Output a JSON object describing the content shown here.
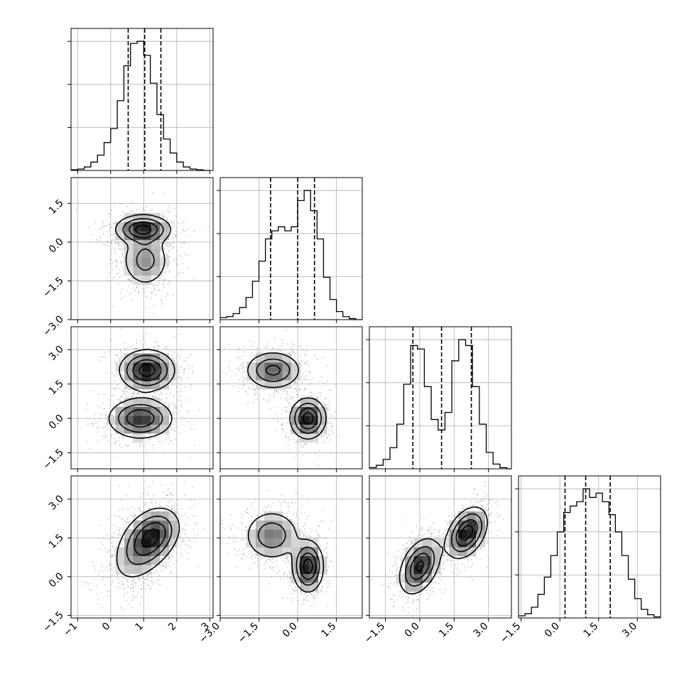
{
  "figure": {
    "title": "",
    "kind": "corner plot"
  },
  "chart_data": {
    "type": "corner",
    "parameters": [
      {
        "label": "",
        "quantiles": [
          0.53,
          1.03,
          1.52
        ],
        "xlim": [
          -1.2,
          3.1
        ],
        "ticks": [
          -1,
          0,
          1,
          2,
          3
        ],
        "tick_labels": [
          "−1",
          "0",
          "1",
          "2",
          "3"
        ]
      },
      {
        "label": "",
        "quantiles": [
          -1.05,
          0.0,
          0.65
        ],
        "xlim": [
          -3.0,
          2.5
        ],
        "ticks": [
          -3.0,
          -1.5,
          0.0,
          1.5
        ],
        "tick_labels": [
          "−3.0",
          "−1.5",
          "0.0",
          "1.5"
        ]
      },
      {
        "label": "",
        "quantiles": [
          -0.3,
          0.95,
          2.25
        ],
        "xlim": [
          -2.2,
          4.0
        ],
        "ticks": [
          -1.5,
          0.0,
          1.5,
          3.0
        ],
        "tick_labels": [
          "−1.5",
          "0.0",
          "1.5",
          "3.0"
        ]
      },
      {
        "label": "",
        "quantiles": [
          0.2,
          1.0,
          1.95
        ],
        "xlim": [
          -1.6,
          3.9
        ],
        "ticks": [
          -1.5,
          0.0,
          1.5,
          3.0
        ],
        "tick_labels": [
          "−1.5",
          "0.0",
          "1.5",
          "3.0"
        ]
      }
    ],
    "histograms": [
      {
        "param": 0,
        "edges": [
          -1.2,
          -1.0,
          -0.8,
          -0.6,
          -0.4,
          -0.2,
          0.0,
          0.2,
          0.4,
          0.6,
          0.8,
          1.0,
          1.2,
          1.4,
          1.6,
          1.8,
          2.0,
          2.2,
          2.4,
          2.6,
          2.8,
          3.0
        ],
        "counts": [
          1,
          2,
          5,
          12,
          22,
          40,
          60,
          100,
          150,
          182,
          185,
          165,
          125,
          80,
          45,
          25,
          12,
          5,
          2,
          1,
          0
        ]
      },
      {
        "param": 1,
        "edges": [
          -3.0,
          -2.75,
          -2.5,
          -2.25,
          -2.0,
          -1.75,
          -1.5,
          -1.25,
          -1.0,
          -0.75,
          -0.5,
          -0.25,
          0.0,
          0.25,
          0.5,
          0.75,
          1.0,
          1.25,
          1.5,
          1.75,
          2.0,
          2.25,
          2.5
        ],
        "counts": [
          2,
          3,
          6,
          12,
          22,
          38,
          58,
          80,
          88,
          92,
          88,
          92,
          118,
          128,
          108,
          80,
          42,
          20,
          8,
          3,
          1,
          0
        ]
      },
      {
        "param": 2,
        "edges": [
          -2.2,
          -1.9,
          -1.6,
          -1.3,
          -1.0,
          -0.7,
          -0.4,
          -0.1,
          0.2,
          0.5,
          0.8,
          1.1,
          1.4,
          1.7,
          2.0,
          2.3,
          2.6,
          2.9,
          3.2,
          3.5,
          3.8,
          4.0
        ],
        "counts": [
          1,
          3,
          8,
          18,
          38,
          72,
          105,
          102,
          70,
          42,
          33,
          48,
          92,
          110,
          105,
          70,
          38,
          14,
          4,
          1,
          0
        ]
      },
      {
        "param": 3,
        "edges": [
          -1.6,
          -1.35,
          -1.1,
          -0.85,
          -0.6,
          -0.35,
          -0.1,
          0.15,
          0.4,
          0.65,
          0.9,
          1.15,
          1.4,
          1.65,
          1.9,
          2.15,
          2.4,
          2.65,
          2.9,
          3.15,
          3.4,
          3.65,
          3.9
        ],
        "counts": [
          2,
          4,
          10,
          22,
          38,
          58,
          80,
          98,
          104,
          108,
          120,
          112,
          116,
          108,
          96,
          80,
          58,
          36,
          18,
          8,
          3,
          1
        ]
      }
    ],
    "pairs": [
      {
        "x": 0,
        "y": 1,
        "components": [
          {
            "mean": [
              0.98,
              0.5
            ],
            "sd": [
              0.42,
              0.28
            ],
            "rho": 0.0,
            "w": 0.55
          },
          {
            "mean": [
              1.05,
              -0.7
            ],
            "sd": [
              0.38,
              0.55
            ],
            "rho": 0.0,
            "w": 0.45
          }
        ],
        "peak": [
          0.95,
          0.45
        ]
      },
      {
        "x": 0,
        "y": 2,
        "components": [
          {
            "mean": [
              1.1,
              2.1
            ],
            "sd": [
              0.42,
              0.45
            ],
            "rho": 0.0,
            "w": 0.5
          },
          {
            "mean": [
              0.9,
              0.0
            ],
            "sd": [
              0.5,
              0.45
            ],
            "rho": 0.0,
            "w": 0.5
          }
        ],
        "peak": [
          1.05,
          2.05
        ]
      },
      {
        "x": 1,
        "y": 2,
        "components": [
          {
            "mean": [
              -0.95,
              2.1
            ],
            "sd": [
              0.55,
              0.42
            ],
            "rho": 0.0,
            "w": 0.5
          },
          {
            "mean": [
              0.4,
              0.0
            ],
            "sd": [
              0.35,
              0.45
            ],
            "rho": 0.0,
            "w": 0.5
          }
        ],
        "peak": [
          0.4,
          0.0
        ]
      },
      {
        "x": 0,
        "y": 3,
        "components": [
          {
            "mean": [
              1.0,
              1.2
            ],
            "sd": [
              0.5,
              0.75
            ],
            "rho": 0.45,
            "w": 0.6
          },
          {
            "mean": [
              1.3,
              1.6
            ],
            "sd": [
              0.4,
              0.5
            ],
            "rho": 0.3,
            "w": 0.4
          }
        ],
        "peak": [
          1.05,
          1.35
        ]
      },
      {
        "x": 1,
        "y": 3,
        "components": [
          {
            "mean": [
              -1.0,
              1.6
            ],
            "sd": [
              0.55,
              0.5
            ],
            "rho": 0.0,
            "w": 0.5
          },
          {
            "mean": [
              0.4,
              0.4
            ],
            "sd": [
              0.3,
              0.5
            ],
            "rho": 0.0,
            "w": 0.5
          }
        ],
        "peak": [
          0.4,
          0.4
        ]
      },
      {
        "x": 2,
        "y": 3,
        "components": [
          {
            "mean": [
              0.0,
              0.4
            ],
            "sd": [
              0.45,
              0.55
            ],
            "rho": 0.4,
            "w": 0.5
          },
          {
            "mean": [
              2.05,
              1.7
            ],
            "sd": [
              0.45,
              0.5
            ],
            "rho": 0.4,
            "w": 0.5
          }
        ],
        "peak": [
          0.05,
          0.5
        ]
      }
    ],
    "grid": true,
    "legend": "none",
    "style": {
      "ink": "#000000",
      "grid": "#b0b0b0",
      "scatter": "#9a9a9a"
    }
  }
}
